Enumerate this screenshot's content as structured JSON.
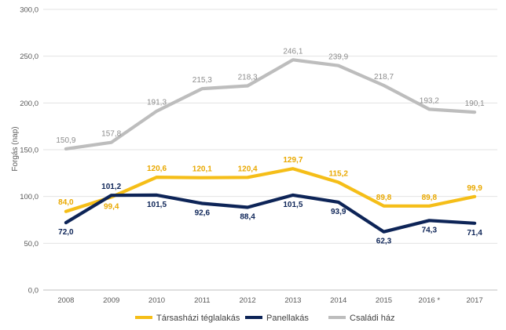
{
  "chart_data": {
    "type": "line",
    "title": "",
    "xlabel": "",
    "ylabel": "Forgás (nap)",
    "ylim": [
      0,
      300
    ],
    "yticks": [
      "0,0",
      "50,0",
      "100,0",
      "150,0",
      "200,0",
      "250,0",
      "300,0"
    ],
    "categories": [
      "2008",
      "2009",
      "2010",
      "2011",
      "2012",
      "2013",
      "2014",
      "2015",
      "2016 *",
      "2017"
    ],
    "grid": "horizontal",
    "legend_position": "bottom",
    "series": [
      {
        "name": "Társasházi téglalakás",
        "color": "#F5BE18",
        "values": [
          84.0,
          99.4,
          120.6,
          120.1,
          120.4,
          129.7,
          115.2,
          89.8,
          89.8,
          99.9
        ],
        "labels": [
          "84,0",
          "99,4",
          "120,6",
          "120,1",
          "120,4",
          "129,7",
          "115,2",
          "89,8",
          "89,8",
          "99,9"
        ]
      },
      {
        "name": "Panellakás",
        "color": "#0D2457",
        "values": [
          72.0,
          101.2,
          101.5,
          92.6,
          88.4,
          101.5,
          93.9,
          62.3,
          74.3,
          71.4
        ],
        "labels": [
          "72,0",
          "101,2",
          "101,5",
          "92,6",
          "88,4",
          "101,5",
          "93,9",
          "62,3",
          "74,3",
          "71,4"
        ]
      },
      {
        "name": "Családi ház",
        "color": "#BDBDBD",
        "values": [
          150.9,
          157.8,
          191.3,
          215.3,
          218.3,
          246.1,
          239.9,
          218.7,
          193.2,
          190.1
        ],
        "labels": [
          "150,9",
          "157,8",
          "191,3",
          "215,3",
          "218,3",
          "246,1",
          "239,9",
          "218,7",
          "193,2",
          "190,1"
        ]
      }
    ]
  }
}
